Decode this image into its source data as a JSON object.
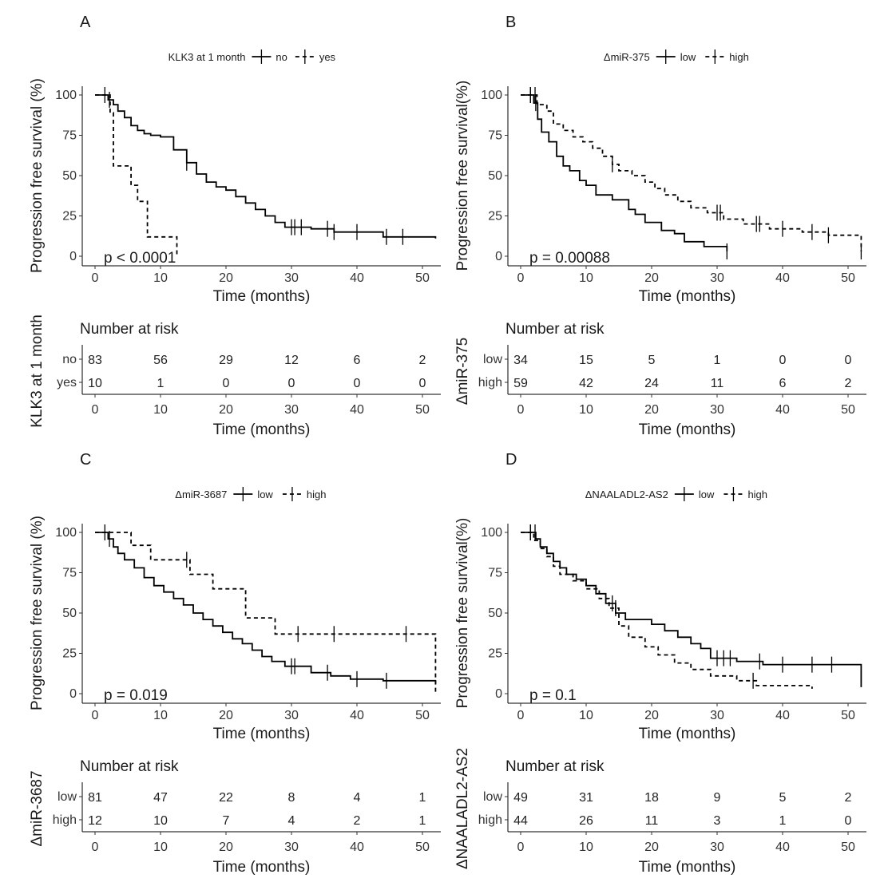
{
  "chart_data": [
    {
      "type": "line",
      "panel": "A",
      "legend_title": "KLK3 at 1 month",
      "ylabel": "Progression free survival (%)",
      "xlabel": "Time (months)",
      "pvalue": "p < 0.0001",
      "xlim": [
        0,
        52
      ],
      "ylim": [
        0,
        100
      ],
      "xticks": [
        0,
        10,
        20,
        30,
        40,
        50
      ],
      "yticks": [
        0,
        25,
        50,
        75,
        100
      ],
      "risk_title": "Number at risk",
      "risk_ylabel": "KLK3 at 1 month",
      "risk_times": [
        0,
        10,
        20,
        30,
        40,
        50
      ],
      "series": [
        {
          "name": "no",
          "style": "solid",
          "x": [
            0,
            2,
            2.8,
            3.5,
            4.5,
            5.5,
            6.5,
            7.5,
            8.5,
            10,
            12,
            14,
            15.5,
            17,
            18.5,
            20,
            21.5,
            23,
            24.5,
            26,
            27.5,
            29,
            33,
            36.5,
            44,
            52
          ],
          "y": [
            100,
            97,
            94,
            90,
            86,
            81,
            78,
            76,
            75,
            74,
            66,
            58,
            51,
            46,
            43,
            41,
            37,
            33,
            29,
            25,
            21,
            18,
            17,
            15,
            12,
            11
          ],
          "censor_x": [
            1.5,
            2.2,
            14,
            30,
            30.5,
            31.5,
            35.5,
            36.5,
            40,
            44.5,
            47
          ],
          "risk": [
            "83",
            "56",
            "29",
            "12",
            "6",
            "2"
          ]
        },
        {
          "name": "yes",
          "style": "dash",
          "x": [
            0,
            2.3,
            2.8,
            5.5,
            6.5,
            8,
            12.5
          ],
          "y": [
            100,
            89,
            56,
            44,
            34,
            12,
            0
          ],
          "censor_x": [],
          "risk": [
            "10",
            "1",
            "0",
            "0",
            "0",
            "0"
          ]
        }
      ]
    },
    {
      "type": "line",
      "panel": "B",
      "legend_title": "ΔmiR-375",
      "ylabel": "Progression free survival(%)",
      "xlabel": "Time (months)",
      "pvalue": "p = 0.00088",
      "xlim": [
        0,
        52
      ],
      "ylim": [
        0,
        100
      ],
      "xticks": [
        0,
        10,
        20,
        30,
        40,
        50
      ],
      "yticks": [
        0,
        25,
        50,
        75,
        100
      ],
      "risk_title": "Number at risk",
      "risk_ylabel": "ΔmiR-375",
      "risk_times": [
        0,
        10,
        20,
        30,
        40,
        50
      ],
      "series": [
        {
          "name": "low",
          "style": "solid",
          "x": [
            0,
            2,
            2.6,
            3.2,
            4.3,
            5.5,
            6.5,
            7.5,
            9,
            10,
            11.5,
            14,
            16.5,
            17.5,
            19,
            21.5,
            23.5,
            25,
            28,
            31.5
          ],
          "y": [
            100,
            95,
            85,
            77,
            71,
            62,
            56,
            53,
            47,
            44,
            38,
            35,
            29,
            26,
            21,
            16,
            14,
            9,
            6,
            3
          ],
          "censor_x": [
            1.5,
            2.3,
            31.5
          ],
          "risk": [
            "34",
            "15",
            "5",
            "1",
            "0",
            "0"
          ]
        },
        {
          "name": "high",
          "style": "dash",
          "x": [
            0,
            2.5,
            4,
            5,
            6.5,
            8,
            9.5,
            11,
            12.5,
            14,
            15,
            17,
            19,
            20.5,
            22,
            24,
            26,
            28.5,
            31,
            34,
            38,
            43,
            47,
            52
          ],
          "y": [
            100,
            94,
            90,
            82,
            78,
            74,
            71,
            67,
            62,
            57,
            53,
            50,
            46,
            42,
            38,
            34,
            30,
            27,
            23,
            20,
            17,
            15,
            13,
            3
          ],
          "censor_x": [
            1.5,
            2.2,
            14,
            30,
            30.5,
            36,
            36.5,
            40,
            44.5,
            47,
            52
          ],
          "risk": [
            "59",
            "42",
            "24",
            "11",
            "6",
            "2"
          ]
        }
      ]
    },
    {
      "type": "line",
      "panel": "C",
      "legend_title": "ΔmiR-3687",
      "ylabel": "Progression free survival (%)",
      "xlabel": "Time (months)",
      "pvalue": "p = 0.019",
      "xlim": [
        0,
        52
      ],
      "ylim": [
        0,
        100
      ],
      "xticks": [
        0,
        10,
        20,
        30,
        40,
        50
      ],
      "yticks": [
        0,
        25,
        50,
        75,
        100
      ],
      "risk_title": "Number at risk",
      "risk_ylabel": "ΔmiR-3687",
      "risk_times": [
        0,
        10,
        20,
        30,
        40,
        50
      ],
      "series": [
        {
          "name": "low",
          "style": "solid",
          "x": [
            0,
            2,
            2.8,
            3.5,
            4.5,
            6,
            7.5,
            9,
            10.5,
            12,
            13.5,
            15,
            16.5,
            18,
            19.5,
            21,
            22.5,
            24,
            25.5,
            27,
            29,
            33,
            36,
            39,
            44,
            52
          ],
          "y": [
            100,
            96,
            91,
            87,
            83,
            78,
            72,
            67,
            63,
            59,
            55,
            50,
            46,
            42,
            38,
            34,
            31,
            27,
            23,
            20,
            17,
            13,
            11,
            9,
            8,
            6
          ],
          "censor_x": [
            1.5,
            2.2,
            30,
            30.5,
            35.5,
            40,
            44.5
          ],
          "risk": [
            "81",
            "47",
            "22",
            "8",
            "4",
            "1"
          ]
        },
        {
          "name": "high",
          "style": "dash",
          "x": [
            0,
            5.5,
            8.5,
            14.5,
            18,
            23,
            27.5,
            52
          ],
          "y": [
            100,
            92,
            83,
            74,
            65,
            47,
            37,
            0
          ],
          "censor_x": [
            14,
            31,
            36.5,
            47.5
          ],
          "risk": [
            "12",
            "10",
            "7",
            "4",
            "2",
            "1"
          ]
        }
      ]
    },
    {
      "type": "line",
      "panel": "D",
      "legend_title": "ΔNAALADL2-AS2",
      "ylabel": "Progression free survival(%)",
      "xlabel": "Time (months)",
      "pvalue": "p = 0.1",
      "xlim": [
        0,
        52
      ],
      "ylim": [
        0,
        100
      ],
      "xticks": [
        0,
        10,
        20,
        30,
        40,
        50
      ],
      "yticks": [
        0,
        25,
        50,
        75,
        100
      ],
      "risk_title": "Number at risk",
      "risk_ylabel": "ΔNAALADL2-AS2",
      "risk_times": [
        0,
        10,
        20,
        30,
        40,
        50
      ],
      "series": [
        {
          "name": "low",
          "style": "solid",
          "x": [
            0,
            2.3,
            3,
            4,
            5,
            6,
            7,
            8.5,
            10,
            11.5,
            13,
            14.5,
            16,
            20,
            22,
            24,
            26,
            27.5,
            29,
            33,
            37,
            52
          ],
          "y": [
            100,
            96,
            91,
            87,
            82,
            78,
            74,
            71,
            67,
            62,
            56,
            50,
            46,
            43,
            39,
            35,
            31,
            28,
            22,
            20,
            18,
            4
          ],
          "censor_x": [
            1.5,
            2.2,
            14,
            30,
            31,
            32,
            36.5,
            40,
            44.5,
            47.5
          ],
          "risk": [
            "49",
            "31",
            "18",
            "9",
            "5",
            "2"
          ]
        },
        {
          "name": "high",
          "style": "dash",
          "x": [
            0,
            2,
            3,
            4,
            5,
            6,
            8,
            10,
            12,
            13.5,
            15,
            16.5,
            19,
            21,
            23.5,
            26,
            29,
            33,
            36,
            44.5
          ],
          "y": [
            100,
            95,
            90,
            85,
            79,
            74,
            70,
            65,
            59,
            53,
            42,
            35,
            29,
            24,
            19,
            15,
            11,
            8,
            5,
            3
          ],
          "censor_x": [
            1.5,
            14.5,
            35.5
          ],
          "risk": [
            "44",
            "26",
            "11",
            "3",
            "1",
            "0"
          ]
        }
      ]
    }
  ]
}
